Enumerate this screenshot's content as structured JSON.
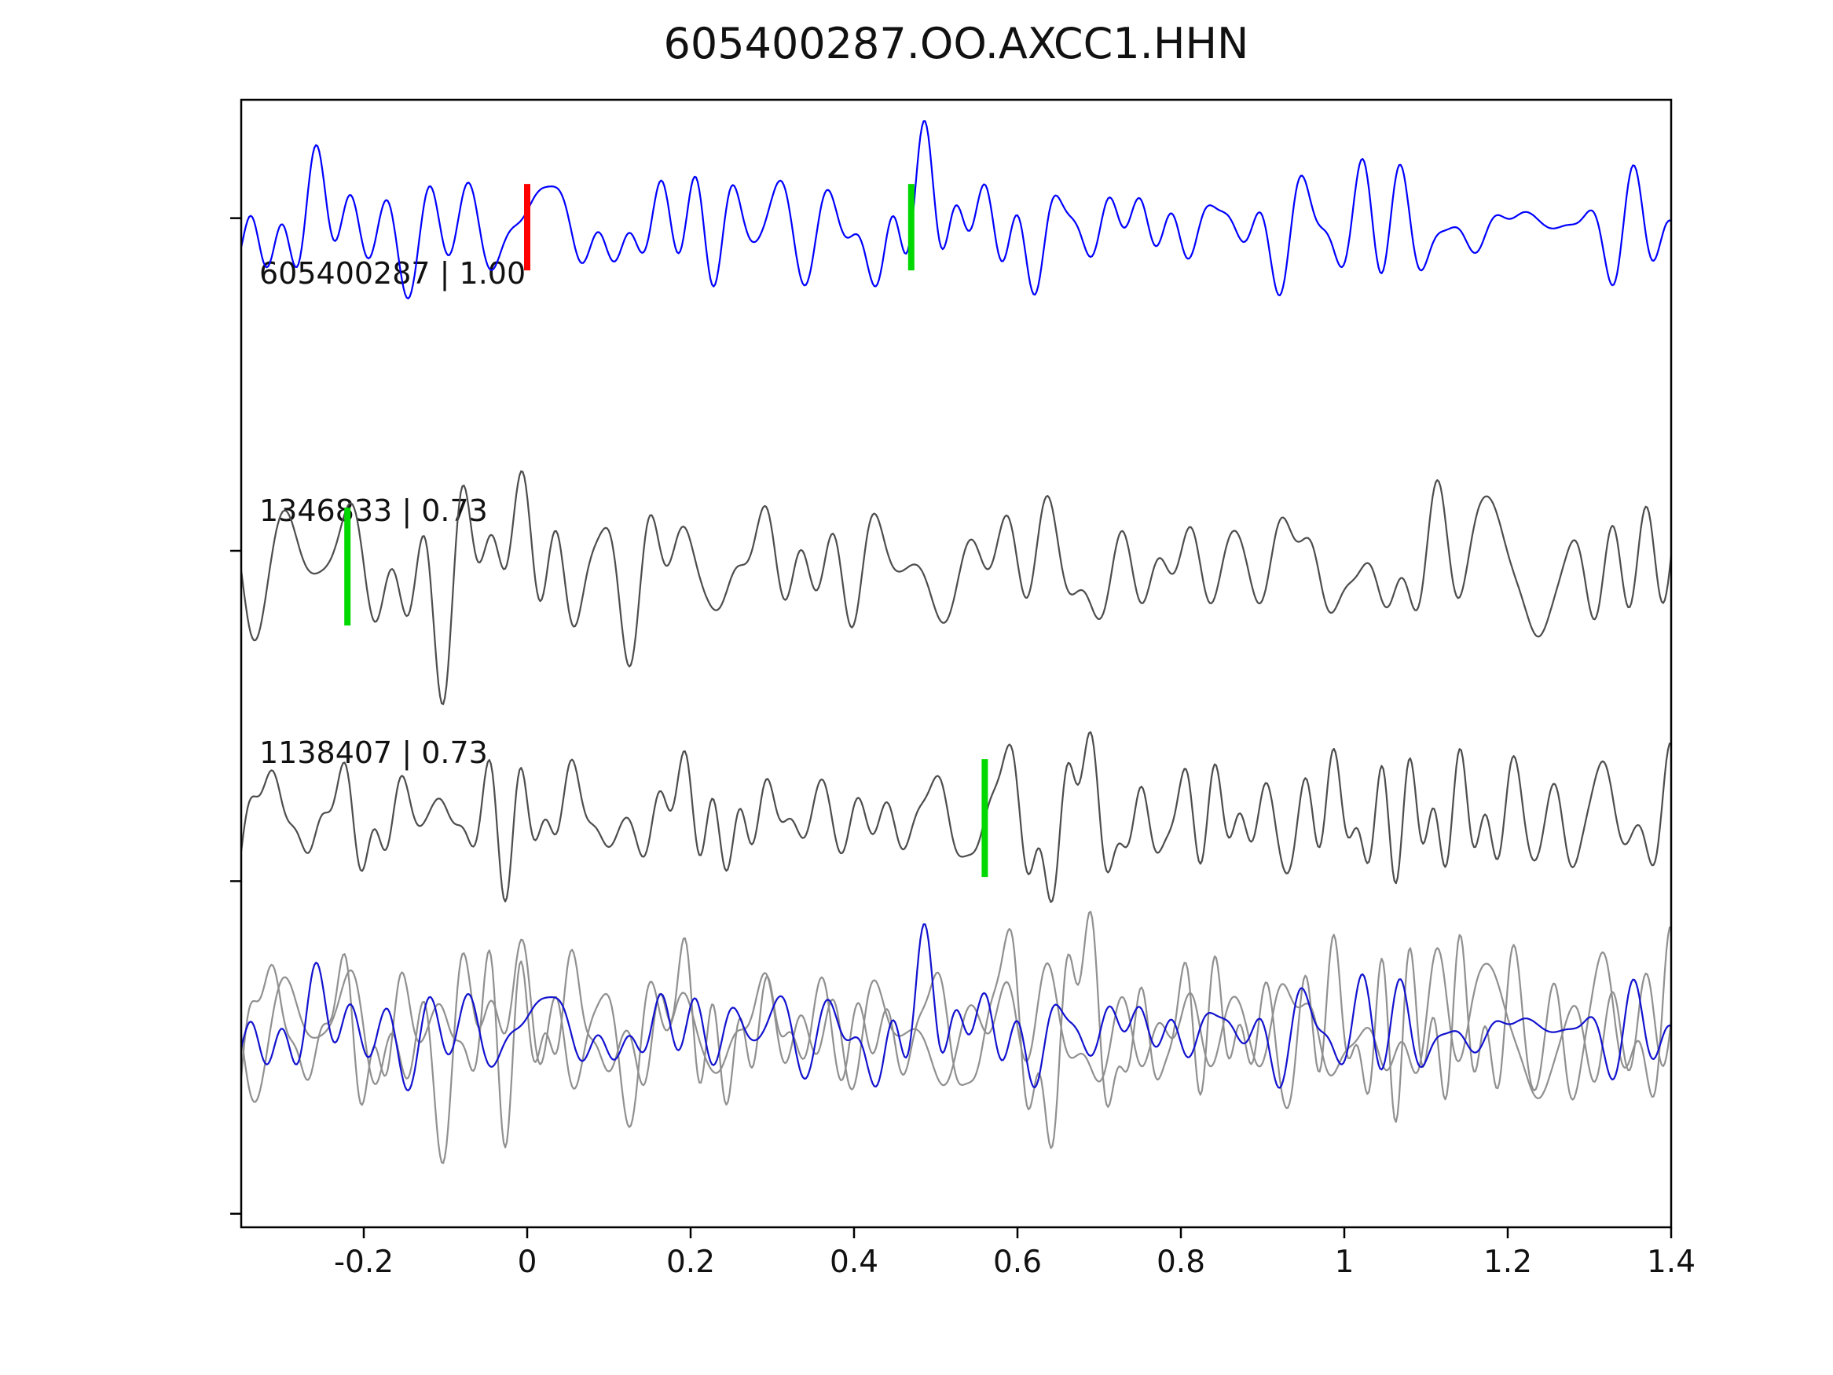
{
  "window": {
    "title": "605400287.OO.AXCC1.HHN"
  },
  "chart_data": {
    "type": "line",
    "title": "605400287.OO.AXCC1.HHN",
    "xlabel": "",
    "ylabel": "",
    "xlim": [
      -0.35,
      1.4
    ],
    "x_ticks": [
      -0.2,
      0,
      0.2,
      0.4,
      0.6,
      0.8,
      1,
      1.2,
      1.4
    ],
    "x_tick_labels": [
      "-0.2",
      "0",
      "0.2",
      "0.4",
      "0.6",
      "0.8",
      "1",
      "1.2",
      "1.4"
    ],
    "y_tick_labels": [],
    "grid": false,
    "legend": "none",
    "waveform_note": "Seismic waveform comparison figure (template vs detections). Trace sample values are noise-like and not resolvable from pixels; synthesized band-limited noise parameters are stored per trace in synth.",
    "colors": {
      "template_trace": "#0000ff",
      "detection_trace": "#4d4d4d",
      "overlay_gray": "#909090",
      "overlay_blue": "#1212cf",
      "pick_red": "#ff0000",
      "pick_green": "#00d800",
      "axis": "#000000"
    },
    "traces": [
      {
        "name": "605400287",
        "label": "605400287 | 1.00",
        "event_id": "605400287",
        "correlation": "1.00",
        "role": "template",
        "color": "#0000ff",
        "picks": [
          {
            "x": 0.0,
            "color": "#ff0000"
          },
          {
            "x": 0.47,
            "color": "#00d800"
          }
        ],
        "synth": {
          "seed": 7,
          "amp": 1.0,
          "f": [
            6,
            50
          ],
          "bumps": [
            {
              "t": 0.475,
              "w": 0.035,
              "g": 0.9
            },
            {
              "t": 0.34,
              "w": 0.03,
              "g": 0.5
            }
          ]
        }
      },
      {
        "name": "1346833",
        "label": "1346833 | 0.73",
        "event_id": "1346833",
        "correlation": "0.73",
        "role": "detection",
        "color": "#4d4d4d",
        "picks": [
          {
            "x": -0.22,
            "color": "#00d800"
          }
        ],
        "synth": {
          "seed": 21,
          "amp": 1.0,
          "f": [
            6,
            48
          ],
          "bumps": [
            {
              "t": 0.17,
              "w": 0.09,
              "g": 0.8
            }
          ]
        }
      },
      {
        "name": "1138407",
        "label": "1138407 | 0.73",
        "event_id": "1138407",
        "correlation": "0.73",
        "role": "detection",
        "color": "#4d4d4d",
        "picks": [
          {
            "x": 0.56,
            "color": "#00d800"
          }
        ],
        "synth": {
          "seed": 33,
          "amp": 0.95,
          "f": [
            10,
            60
          ],
          "bumps": []
        }
      },
      {
        "name": "overlay",
        "label": "",
        "role": "overlay",
        "picks": [],
        "members": [
          {
            "color": "#909090",
            "synth": {
              "seed": 21,
              "amp": 1.05,
              "f": [
                6,
                48
              ],
              "bumps": [
                {
                  "t": 0.17,
                  "w": 0.09,
                  "g": 0.8
                }
              ]
            }
          },
          {
            "color": "#909090",
            "synth": {
              "seed": 33,
              "amp": 0.95,
              "f": [
                10,
                60
              ],
              "bumps": []
            }
          },
          {
            "color": "#1212cf",
            "synth": {
              "seed": 7,
              "amp": 0.85,
              "f": [
                6,
                50
              ],
              "bumps": [
                {
                  "t": 0.475,
                  "w": 0.035,
                  "g": 1.3
                }
              ]
            }
          }
        ]
      }
    ]
  }
}
